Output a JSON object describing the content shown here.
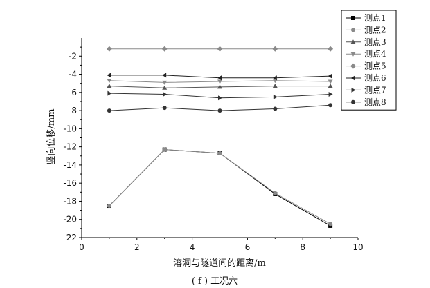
{
  "chart_data": {
    "type": "line",
    "title": "",
    "caption": "( f ) 工况六",
    "xlabel": "溶洞与隧道间的距离/m",
    "ylabel": "竖向位移/mm",
    "xlim": [
      0,
      10
    ],
    "ylim": [
      -22,
      0
    ],
    "xticks": [
      0,
      2,
      4,
      6,
      8,
      10
    ],
    "yticks": [
      -2,
      -4,
      -6,
      -8,
      -10,
      -12,
      -14,
      -16,
      -18,
      -20,
      -22
    ],
    "x": [
      1,
      3,
      5,
      7,
      9
    ],
    "legend_position": "top-right",
    "grid": false,
    "series": [
      {
        "name": "测点1",
        "marker": "square",
        "color": "#000000",
        "values": [
          -18.5,
          -12.3,
          -12.7,
          -17.2,
          -20.7
        ]
      },
      {
        "name": "测点2",
        "marker": "circle",
        "color": "#8a8a8a",
        "values": [
          -18.5,
          -12.3,
          -12.7,
          -17.1,
          -20.5
        ]
      },
      {
        "name": "测点3",
        "marker": "triangle-up",
        "color": "#555555",
        "values": [
          -5.3,
          -5.5,
          -5.4,
          -5.3,
          -5.3
        ]
      },
      {
        "name": "测点4",
        "marker": "triangle-down",
        "color": "#8a8a8a",
        "values": [
          -4.7,
          -4.9,
          -4.8,
          -4.7,
          -4.8
        ]
      },
      {
        "name": "测点5",
        "marker": "diamond",
        "color": "#8a8a8a",
        "values": [
          -1.2,
          -1.2,
          -1.2,
          -1.2,
          -1.2
        ]
      },
      {
        "name": "测点6",
        "marker": "triangle-left",
        "color": "#222222",
        "values": [
          -4.1,
          -4.1,
          -4.4,
          -4.4,
          -4.2
        ]
      },
      {
        "name": "测点7",
        "marker": "triangle-right",
        "color": "#333333",
        "values": [
          -6.1,
          -6.2,
          -6.6,
          -6.5,
          -6.2
        ]
      },
      {
        "name": "测点8",
        "marker": "circle",
        "color": "#333333",
        "values": [
          -8.0,
          -7.7,
          -8.0,
          -7.8,
          -7.4
        ]
      }
    ]
  }
}
